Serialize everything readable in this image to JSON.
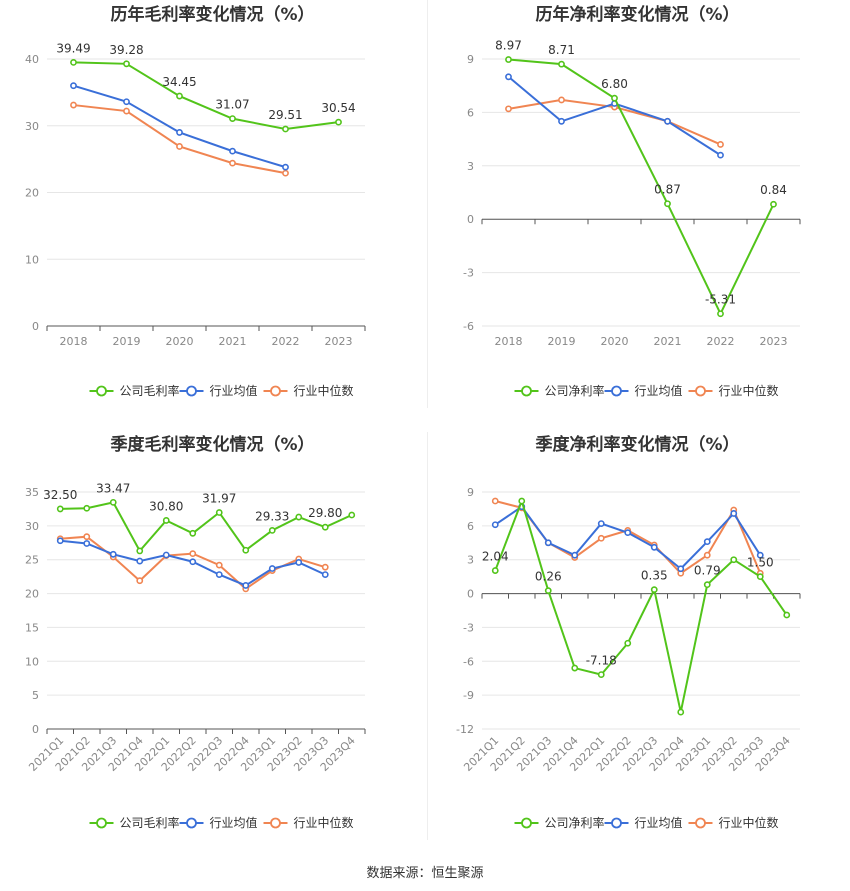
{
  "colors": {
    "company": "#52c41a",
    "industry_avg": "#3a6fd8",
    "industry_median": "#f08552",
    "grid": "#e6e6e6"
  },
  "source": "数据来源：恒生聚源",
  "chart_data": [
    {
      "type": "line",
      "title": "历年毛利率变化情况（%）",
      "categories": [
        "2018",
        "2019",
        "2020",
        "2021",
        "2022",
        "2023"
      ],
      "ylim": [
        0,
        40
      ],
      "yticks": [
        0,
        10,
        20,
        30,
        40
      ],
      "grid": true,
      "legend_position": "bottom",
      "series": [
        {
          "name": "公司毛利率",
          "color": "#52c41a",
          "labels": true,
          "values": [
            39.49,
            39.28,
            34.45,
            31.07,
            29.51,
            30.54
          ]
        },
        {
          "name": "行业均值",
          "color": "#3a6fd8",
          "labels": false,
          "values": [
            36.0,
            33.6,
            29.0,
            26.2,
            23.8,
            null
          ]
        },
        {
          "name": "行业中位数",
          "color": "#f08552",
          "labels": false,
          "values": [
            33.1,
            32.2,
            26.9,
            24.4,
            22.9,
            null
          ]
        }
      ]
    },
    {
      "type": "line",
      "title": "历年净利率变化情况（%）",
      "categories": [
        "2018",
        "2019",
        "2020",
        "2021",
        "2022",
        "2023"
      ],
      "ylim": [
        -6,
        9
      ],
      "yticks": [
        -6,
        -3,
        0,
        3,
        6,
        9
      ],
      "grid": true,
      "legend_position": "bottom",
      "series": [
        {
          "name": "公司净利率",
          "color": "#52c41a",
          "labels": true,
          "values": [
            8.97,
            8.71,
            6.8,
            0.87,
            -5.31,
            0.84
          ]
        },
        {
          "name": "行业均值",
          "color": "#3a6fd8",
          "labels": false,
          "values": [
            8.0,
            5.5,
            6.5,
            5.5,
            3.6,
            null
          ]
        },
        {
          "name": "行业中位数",
          "color": "#f08552",
          "labels": false,
          "values": [
            6.2,
            6.7,
            6.3,
            5.5,
            4.2,
            null
          ]
        }
      ]
    },
    {
      "type": "line",
      "title": "季度毛利率变化情况（%）",
      "categories": [
        "2021Q1",
        "2021Q2",
        "2021Q3",
        "2021Q4",
        "2022Q1",
        "2022Q2",
        "2022Q3",
        "2022Q4",
        "2023Q1",
        "2023Q2",
        "2023Q3",
        "2023Q4"
      ],
      "ylim": [
        0,
        35
      ],
      "yticks": [
        0,
        5,
        10,
        15,
        20,
        25,
        30,
        35
      ],
      "grid": true,
      "legend_position": "bottom",
      "series": [
        {
          "name": "公司毛利率",
          "color": "#52c41a",
          "labels": true,
          "values": [
            32.5,
            32.6,
            33.47,
            26.3,
            30.8,
            28.9,
            31.97,
            26.4,
            29.33,
            31.3,
            29.8,
            31.6
          ],
          "data_labels": [
            "32.50",
            "",
            "33.47",
            "",
            "30.80",
            "",
            "31.97",
            "",
            "29.33",
            "",
            "29.80",
            ""
          ]
        },
        {
          "name": "行业均值",
          "color": "#3a6fd8",
          "labels": false,
          "values": [
            27.8,
            27.4,
            25.8,
            24.8,
            25.7,
            24.7,
            22.8,
            21.2,
            23.7,
            24.6,
            22.8,
            null
          ]
        },
        {
          "name": "行业中位数",
          "color": "#f08552",
          "labels": false,
          "values": [
            28.1,
            28.4,
            25.4,
            21.9,
            25.6,
            25.9,
            24.2,
            20.7,
            23.4,
            25.1,
            23.9,
            null
          ]
        }
      ]
    },
    {
      "type": "line",
      "title": "季度净利率变化情况（%）",
      "categories": [
        "2021Q1",
        "2021Q2",
        "2021Q3",
        "2021Q4",
        "2022Q1",
        "2022Q2",
        "2022Q3",
        "2022Q4",
        "2023Q1",
        "2023Q2",
        "2023Q3",
        "2023Q4"
      ],
      "ylim": [
        -12,
        9
      ],
      "yticks": [
        -12,
        -9,
        -6,
        -3,
        0,
        3,
        6,
        9
      ],
      "grid": true,
      "legend_position": "bottom",
      "series": [
        {
          "name": "公司净利率",
          "color": "#52c41a",
          "labels": true,
          "values": [
            2.04,
            8.2,
            0.26,
            -6.6,
            -7.18,
            -4.4,
            0.35,
            -10.5,
            0.79,
            3.0,
            1.5,
            -1.9
          ],
          "data_labels": [
            "2.04",
            "",
            "0.26",
            "",
            "-7.18",
            "",
            "0.35",
            "",
            "0.79",
            "",
            "1.50",
            ""
          ]
        },
        {
          "name": "行业均值",
          "color": "#3a6fd8",
          "labels": false,
          "values": [
            6.1,
            7.7,
            4.5,
            3.4,
            6.2,
            5.4,
            4.1,
            2.2,
            4.6,
            7.1,
            3.4,
            null
          ]
        },
        {
          "name": "行业中位数",
          "color": "#f08552",
          "labels": false,
          "values": [
            8.2,
            7.6,
            4.5,
            3.2,
            4.9,
            5.6,
            4.3,
            1.8,
            3.4,
            7.4,
            1.8,
            null
          ]
        }
      ]
    }
  ]
}
